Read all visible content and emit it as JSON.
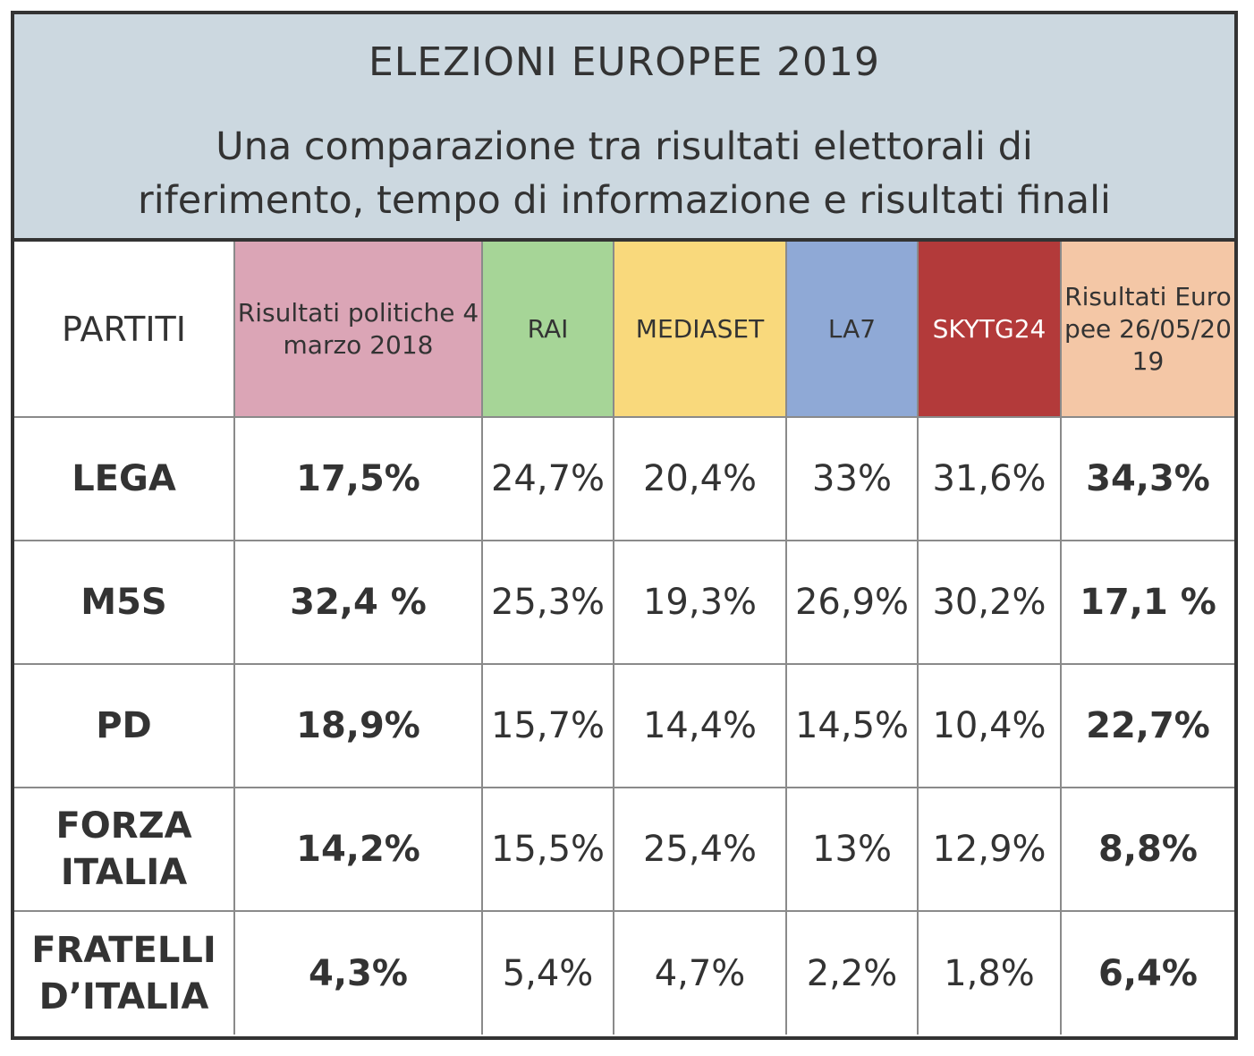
{
  "chart_data": {
    "type": "table",
    "title": "ELEZIONI EUROPEE 2019",
    "subtitle": "Una comparazione tra risultati elettorali di riferimento, tempo di informazione e risultati finali",
    "subtitle_lines": [
      "Una comparazione tra risultati elettorali di",
      "riferimento, tempo di informazione e risultati finali"
    ],
    "columns": [
      {
        "label": "PARTITI",
        "color": "#ffffff",
        "text_color": "#333333"
      },
      {
        "label": "Risultati politiche 4 marzo 2018",
        "color": "#dba5b6",
        "text_color": "#333333"
      },
      {
        "label": "RAI",
        "color": "#a6d597",
        "text_color": "#333333"
      },
      {
        "label": "MEDIASET",
        "color": "#f9d97c",
        "text_color": "#333333"
      },
      {
        "label": "LA7",
        "color": "#8fa9d6",
        "text_color": "#333333"
      },
      {
        "label": "SKYTG24",
        "color": "#b33a3a",
        "text_color": "#ffffff"
      },
      {
        "label": "Risultati Europee 26/05/2019",
        "color": "#f4c7a6",
        "text_color": "#333333"
      }
    ],
    "rows": [
      {
        "party": "LEGA",
        "values": [
          "17,5%",
          "24,7%",
          "20,4%",
          "33%",
          "31,6%",
          "34,3%"
        ]
      },
      {
        "party": "M5S",
        "values": [
          "32,4 %",
          "25,3%",
          "19,3%",
          "26,9%",
          "30,2%",
          "17,1 %"
        ]
      },
      {
        "party": "PD",
        "values": [
          "18,9%",
          "15,7%",
          "14,4%",
          "14,5%",
          "10,4%",
          "22,7%"
        ]
      },
      {
        "party": "FORZA ITALIA",
        "values": [
          "14,2%",
          "15,5%",
          "25,4%",
          "13%",
          "12,9%",
          "8,8%"
        ]
      },
      {
        "party": "FRATELLI D’ITALIA",
        "values": [
          "4,3%",
          "5,4%",
          "4,7%",
          "2,2%",
          "1,8%",
          "6,4%"
        ]
      }
    ],
    "bold_columns": [
      0,
      5
    ]
  },
  "colors": {
    "header_background": "#ccd8e0",
    "border": "#333333",
    "gridline": "#8a8a8a"
  }
}
